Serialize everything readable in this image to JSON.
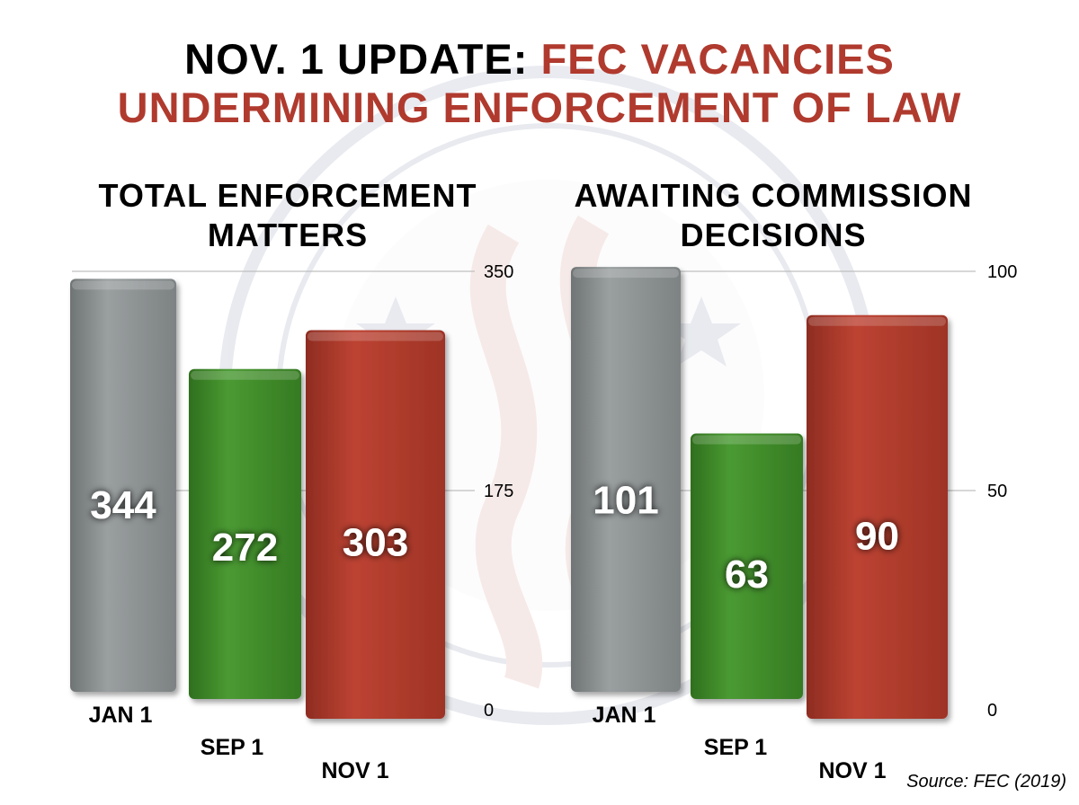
{
  "title": {
    "part1": "NOV. 1 UPDATE: ",
    "part2": "FEC VACANCIES",
    "line2": "UNDERMINING ENFORCEMENT OF LAW"
  },
  "colors": {
    "title_accent": "#b03a2e",
    "jan": "#8e9394",
    "sep": "#3f8f2a",
    "nov": "#b03a2e"
  },
  "source": "Source: FEC (2019)",
  "chart_data": [
    {
      "type": "bar",
      "title_lines": [
        "TOTAL ENFORCEMENT",
        "MATTERS"
      ],
      "categories": [
        "JAN 1",
        "SEP 1",
        "NOV 1"
      ],
      "values": [
        344,
        272,
        303
      ],
      "data_labels": [
        "344",
        "272",
        "303"
      ],
      "ylim": [
        0,
        350
      ],
      "yticks": [
        "0",
        "175",
        "350"
      ],
      "grid": true
    },
    {
      "type": "bar",
      "title_lines": [
        "AWAITING COMMISSION",
        "DECISIONS"
      ],
      "categories": [
        "JAN 1",
        "SEP 1",
        "NOV 1"
      ],
      "values": [
        101,
        63,
        90
      ],
      "data_labels": [
        "101",
        "63",
        "90"
      ],
      "ylim": [
        0,
        100
      ],
      "yticks": [
        "0",
        "50",
        "100"
      ],
      "grid": true
    }
  ]
}
